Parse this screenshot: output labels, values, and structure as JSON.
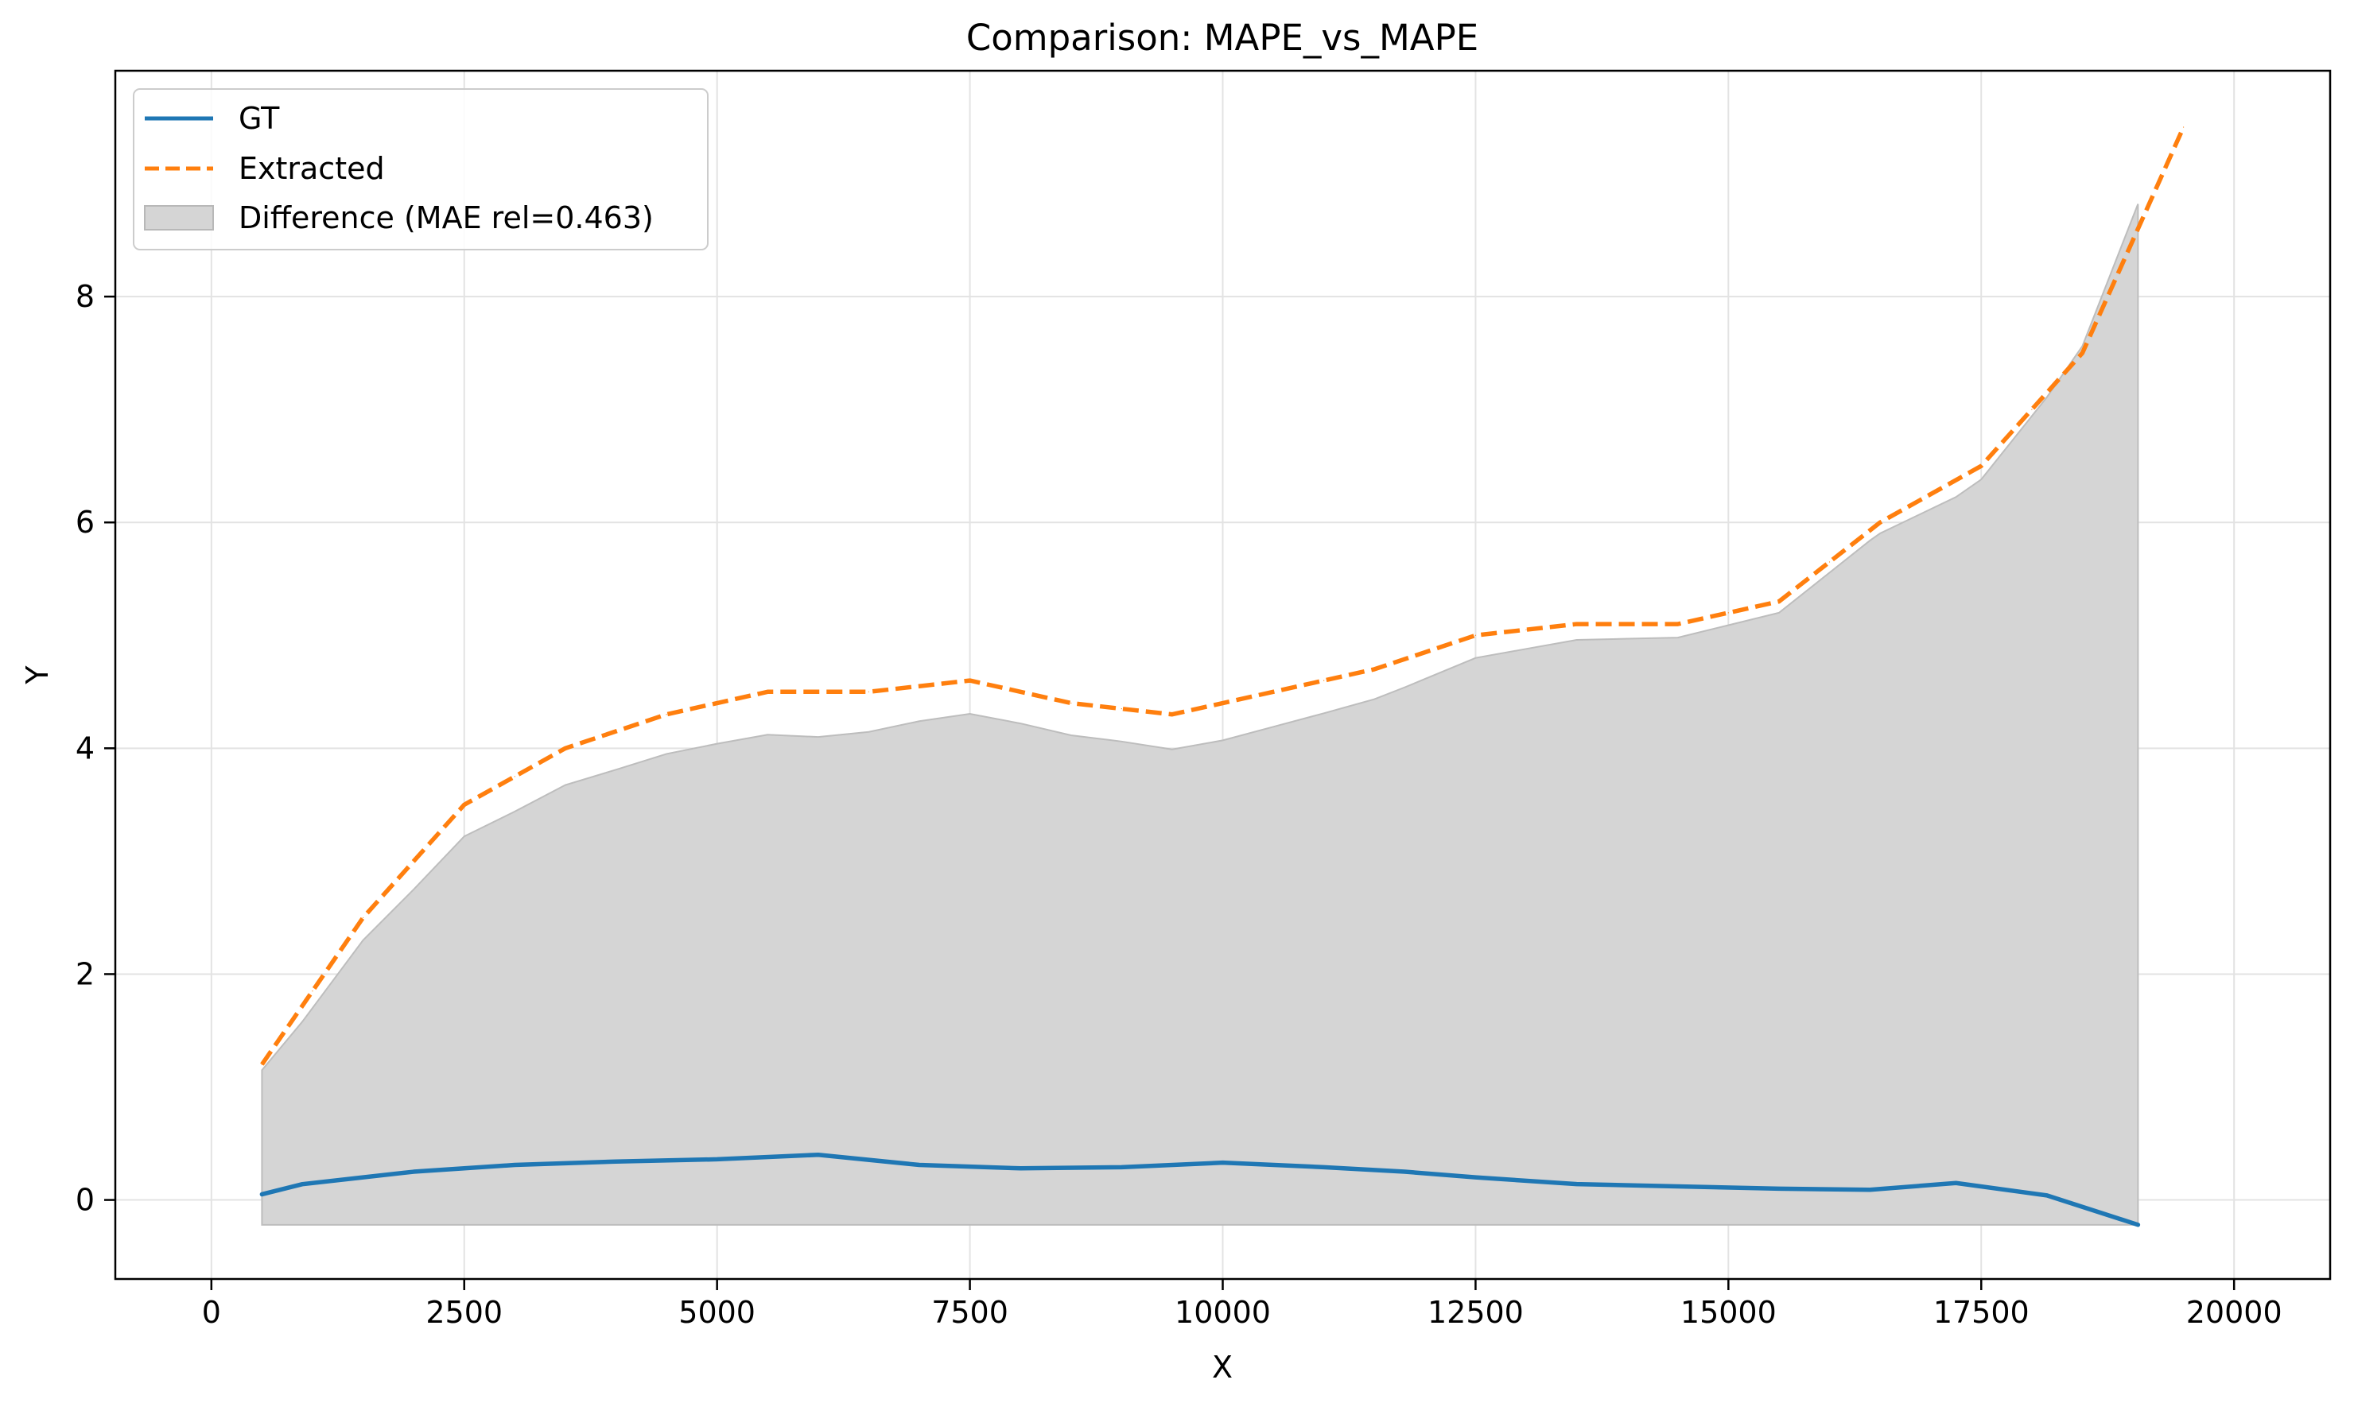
{
  "chart_data": {
    "type": "line",
    "title": "Comparison: MAPE_vs_MAPE",
    "xlabel": "X",
    "ylabel": "Y",
    "xlim": [
      -950,
      20950
    ],
    "ylim": [
      -0.7,
      10.0
    ],
    "xticks": [
      0,
      2500,
      5000,
      7500,
      10000,
      12500,
      15000,
      17500,
      20000
    ],
    "xtick_labels": [
      "0",
      "2500",
      "5000",
      "7500",
      "10000",
      "12500",
      "15000",
      "17500",
      "20000"
    ],
    "yticks": [
      0,
      2,
      4,
      6,
      8
    ],
    "ytick_labels": [
      "0",
      "2",
      "4",
      "6",
      "8"
    ],
    "grid": true,
    "legend_position": "top-left",
    "series": [
      {
        "name": "GT",
        "style": "solid",
        "color": "#1f77b4",
        "x": [
          500,
          900,
          1500,
          2000,
          2500,
          3000,
          4000,
          5000,
          6000,
          7000,
          8000,
          9000,
          10000,
          11000,
          11800,
          12500,
          13500,
          14500,
          15500,
          16400,
          17250,
          18150,
          19050
        ],
        "y": [
          0.05,
          0.14,
          0.2,
          0.25,
          0.28,
          0.31,
          0.34,
          0.36,
          0.4,
          0.31,
          0.28,
          0.29,
          0.33,
          0.29,
          0.25,
          0.2,
          0.14,
          0.12,
          0.1,
          0.09,
          0.15,
          0.04,
          -0.22
        ]
      },
      {
        "name": "Extracted",
        "style": "dashed",
        "color": "#ff7f0e",
        "x": [
          500,
          1000,
          1500,
          2000,
          2500,
          3000,
          3500,
          4000,
          4500,
          5000,
          5500,
          6000,
          6500,
          7000,
          7500,
          8000,
          8500,
          9000,
          9500,
          10000,
          10500,
          11000,
          11500,
          12000,
          12500,
          13000,
          13500,
          14000,
          14500,
          15000,
          15500,
          16000,
          16500,
          17000,
          17500,
          18000,
          18500,
          19000,
          19500
        ],
        "y": [
          1.2,
          1.85,
          2.5,
          3.0,
          3.5,
          3.75,
          4.0,
          4.15,
          4.3,
          4.4,
          4.5,
          4.5,
          4.5,
          4.55,
          4.6,
          4.5,
          4.4,
          4.35,
          4.3,
          4.4,
          4.5,
          4.6,
          4.7,
          4.85,
          5.0,
          5.05,
          5.1,
          5.1,
          5.1,
          5.2,
          5.3,
          5.65,
          6.0,
          6.25,
          6.5,
          7.0,
          7.5,
          8.5,
          9.5
        ]
      }
    ],
    "difference": {
      "label": "Difference (MAE rel=0.463)",
      "color": "#d5d5d5"
    }
  }
}
